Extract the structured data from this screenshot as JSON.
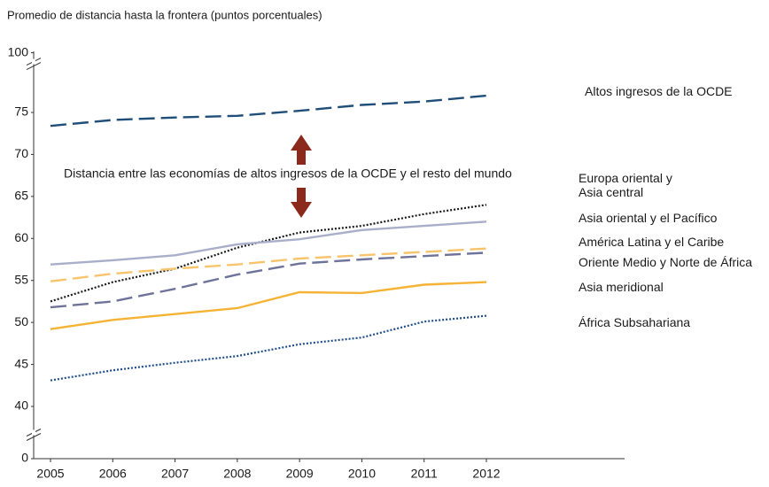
{
  "chart_data": {
    "type": "line",
    "y_label": "Promedio de distancia hasta la frontera (puntos porcentuales)",
    "annotation": "Distancia entre las economías de altos ingresos de la OCDE y el resto del mundo",
    "x": [
      2005,
      2006,
      2007,
      2008,
      2009,
      2010,
      2011,
      2012
    ],
    "xlim": [
      2005,
      2012
    ],
    "ylim": [
      0,
      100
    ],
    "yticks": [
      0,
      40,
      45,
      50,
      55,
      60,
      65,
      70,
      75,
      100
    ],
    "axis_breaks": [
      [
        0,
        40
      ],
      [
        80,
        100
      ]
    ],
    "grid": false,
    "series": [
      {
        "name": "Altos ingresos de la OCDE",
        "color": "#1f4e79",
        "style": "dashed",
        "values": [
          73.4,
          74.1,
          74.4,
          74.6,
          75.2,
          75.9,
          76.3,
          77.0
        ]
      },
      {
        "name": "Europa oriental y Asia central",
        "color": "#1a1a1a",
        "style": "dotted",
        "values": [
          52.5,
          54.8,
          56.4,
          58.9,
          60.7,
          61.5,
          62.9,
          64.0
        ]
      },
      {
        "name": "Asia oriental y el Pacífico",
        "color": "#a9aec9",
        "style": "solid",
        "values": [
          56.9,
          57.4,
          58.0,
          59.3,
          59.9,
          61.0,
          61.5,
          62.0
        ]
      },
      {
        "name": "América Latina y el Caribe",
        "color": "#f7c46c",
        "style": "dashed",
        "values": [
          54.9,
          55.8,
          56.4,
          56.9,
          57.6,
          58.0,
          58.4,
          58.8
        ]
      },
      {
        "name": "Oriente Medio y Norte de África",
        "color": "#6e7399",
        "style": "dashed",
        "values": [
          51.8,
          52.5,
          54.0,
          55.7,
          57.0,
          57.5,
          57.9,
          58.3
        ]
      },
      {
        "name": "Asia meridional",
        "color": "#f5b335",
        "style": "solid",
        "values": [
          49.2,
          50.3,
          51.0,
          51.7,
          53.6,
          53.5,
          54.5,
          54.8
        ]
      },
      {
        "name": "África Subsahariana",
        "color": "#1f4e8c",
        "style": "dotted",
        "values": [
          43.1,
          44.3,
          45.2,
          46.0,
          47.4,
          48.2,
          50.1,
          50.8
        ]
      }
    ]
  }
}
